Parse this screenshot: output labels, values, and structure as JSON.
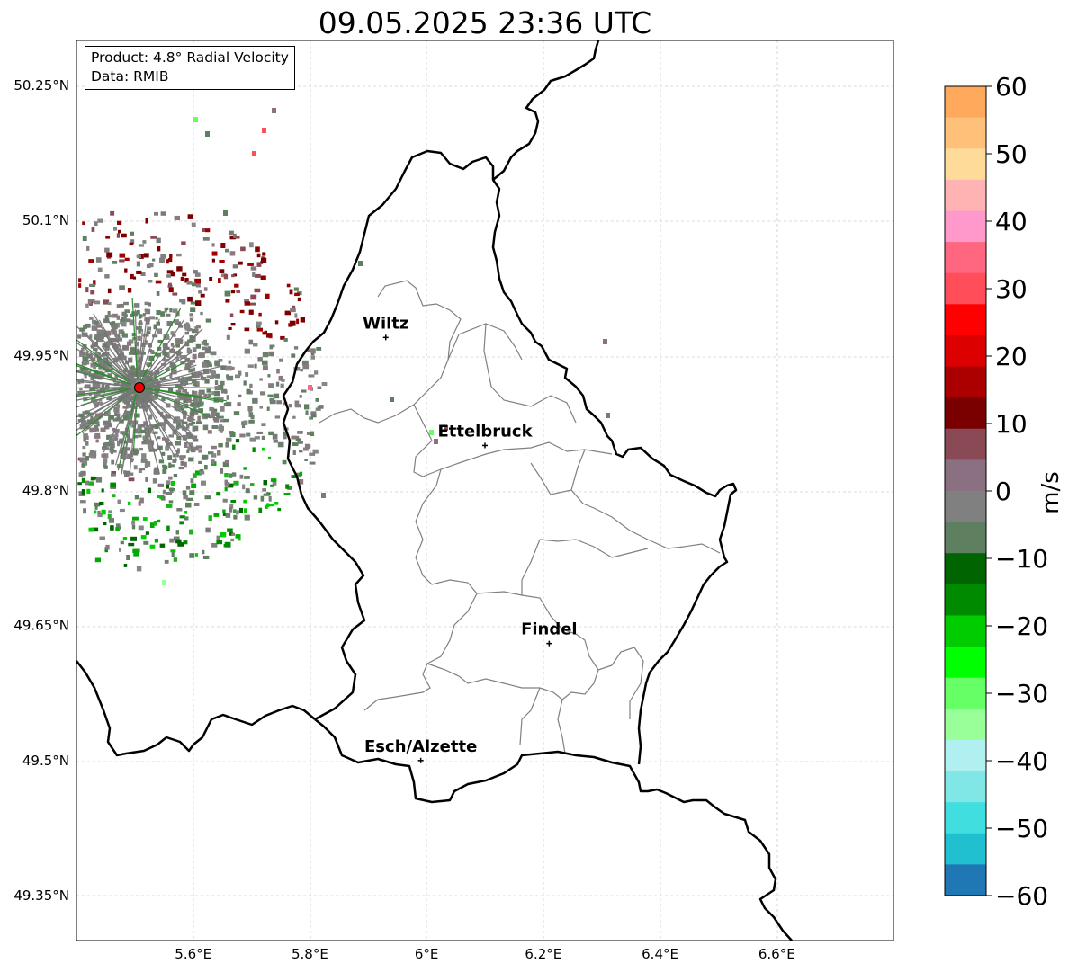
{
  "title": "09.05.2025 23:36 UTC",
  "info": {
    "product": "Product: 4.8° Radial Velocity",
    "data": "Data: RMIB"
  },
  "map": {
    "lon_range": [
      5.4,
      6.8
    ],
    "lat_range": [
      49.3,
      50.3
    ],
    "lat_ticks": [
      "50.25°N",
      "50.1°N",
      "49.95°N",
      "49.8°N",
      "49.65°N",
      "49.5°N",
      "49.35°N"
    ],
    "lat_tick_values": [
      50.25,
      50.1,
      49.95,
      49.8,
      49.65,
      49.5,
      49.35
    ],
    "lon_ticks": [
      "5.6°E",
      "5.8°E",
      "6°E",
      "6.2°E",
      "6.4°E",
      "6.6°E"
    ],
    "lon_tick_values": [
      5.6,
      5.8,
      6.0,
      6.2,
      6.4,
      6.6
    ],
    "cities": [
      {
        "name": "Wiltz",
        "lon": 5.93,
        "lat": 49.97
      },
      {
        "name": "Ettelbruck",
        "lon": 6.1,
        "lat": 49.85
      },
      {
        "name": "Findel",
        "lon": 6.21,
        "lat": 49.63
      },
      {
        "name": "Esch/Alzette",
        "lon": 5.99,
        "lat": 49.5
      }
    ],
    "radar_site": {
      "lon": 5.505,
      "lat": 49.915
    }
  },
  "colorbar": {
    "label": "m/s",
    "range": [
      -60,
      60
    ],
    "ticks": [
      "60",
      "50",
      "40",
      "30",
      "20",
      "10",
      "0",
      "−10",
      "−20",
      "−30",
      "−40",
      "−50",
      "−60"
    ],
    "tick_values": [
      60,
      50,
      40,
      30,
      20,
      10,
      0,
      -10,
      -20,
      -30,
      -40,
      -50,
      -60
    ],
    "colors": [
      "#ffa95c",
      "#ffc07a",
      "#ffdb99",
      "#ffb3b3",
      "#ff99cc",
      "#ff6680",
      "#ff4d59",
      "#ff0000",
      "#dd0000",
      "#aa0000",
      "#7a0000",
      "#8a4a55",
      "#8a7080",
      "#808080",
      "#5f8060",
      "#006400",
      "#008a00",
      "#00cc00",
      "#00ff00",
      "#66ff66",
      "#99ff99",
      "#b0f0f0",
      "#80e6e6",
      "#40dede",
      "#20c0d0",
      "#1f77b4"
    ]
  }
}
